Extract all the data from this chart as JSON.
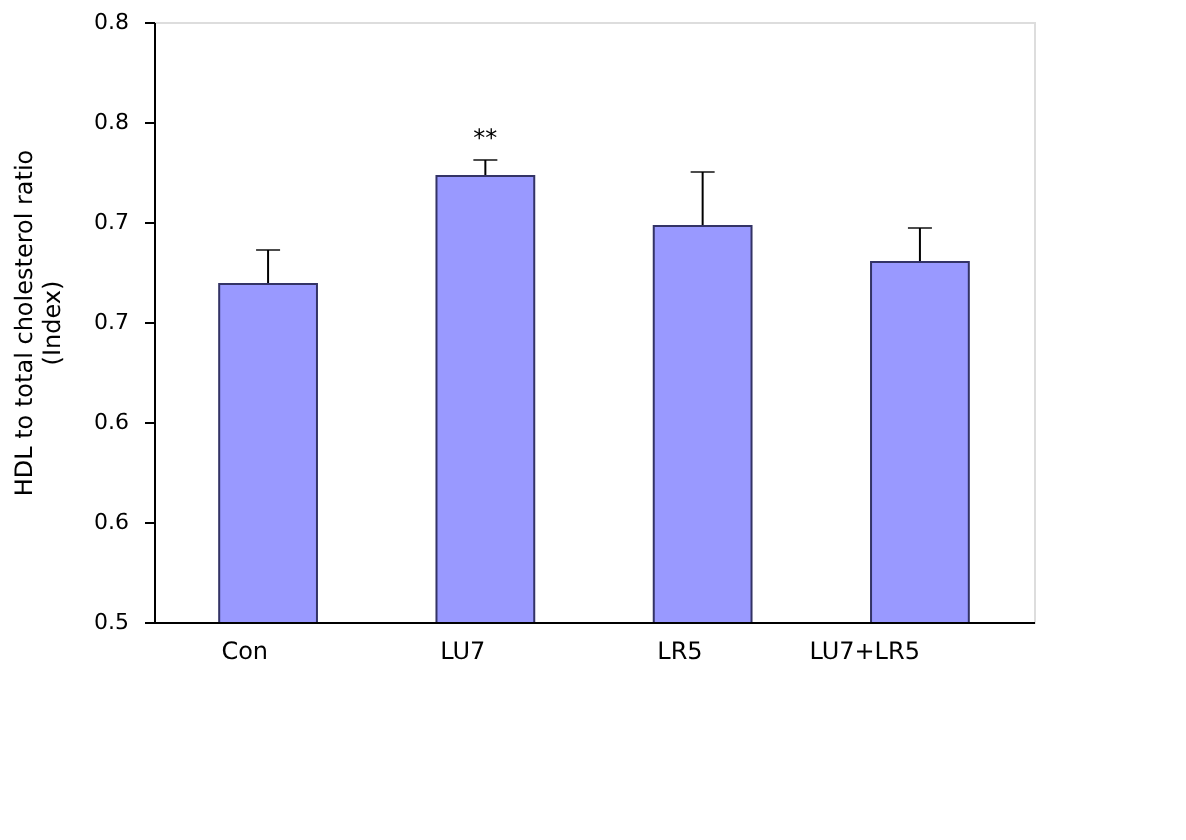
{
  "chart_data": {
    "type": "bar",
    "ylabel": "HDL to total cholesterol ratio\n(Index)",
    "categories": [
      "Con",
      "LU7",
      "LR5",
      "LU7+LR5"
    ],
    "values": [
      0.669,
      0.723,
      0.698,
      0.68
    ],
    "errors": [
      0.017,
      0.008,
      0.027,
      0.017
    ],
    "color": "#9999ff",
    "ylim": [
      0.5,
      0.8
    ],
    "yticks": [
      {
        "value": 0.5,
        "label": "0.5"
      },
      {
        "value": 0.55,
        "label": "0.6"
      },
      {
        "value": 0.6,
        "label": "0.6"
      },
      {
        "value": 0.65,
        "label": "0.7"
      },
      {
        "value": 0.7,
        "label": "0.7"
      },
      {
        "value": 0.75,
        "label": "0.8"
      },
      {
        "value": 0.8,
        "label": "0.8"
      }
    ],
    "annotations": [
      {
        "text": "**",
        "x": "LU7",
        "y": 0.723
      }
    ],
    "grid": false
  }
}
